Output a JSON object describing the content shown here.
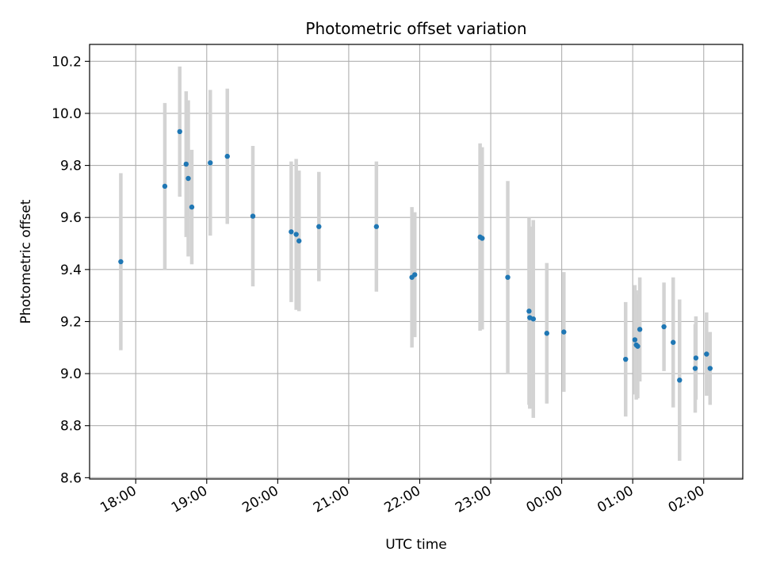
{
  "chart_data": {
    "type": "scatter",
    "title": "Photometric offset variation",
    "xlabel": "UTC time",
    "ylabel": "Photometric offset",
    "grid": true,
    "legend": "none",
    "x_unit": "hours (UTC, continuous across midnight; 24 = 00:00 next day)",
    "xlim": [
      17.35,
      26.55
    ],
    "ylim": [
      8.595,
      10.265
    ],
    "x_ticks": [
      18,
      19,
      20,
      21,
      22,
      23,
      24,
      25,
      26
    ],
    "x_tick_labels": [
      "18:00",
      "19:00",
      "20:00",
      "21:00",
      "22:00",
      "23:00",
      "00:00",
      "01:00",
      "02:00"
    ],
    "y_ticks": [
      8.6,
      8.8,
      9.0,
      9.2,
      9.4,
      9.6,
      9.8,
      10.0,
      10.2
    ],
    "y_tick_labels": [
      "8.6",
      "8.8",
      "9.0",
      "9.2",
      "9.4",
      "9.6",
      "9.8",
      "10.0",
      "10.2"
    ],
    "colors": {
      "point": "#1f77b4",
      "errorbar": "#d3d3d3",
      "grid": "#b0b0b0"
    },
    "series": [
      {
        "points": [
          {
            "x": 17.79,
            "y": 9.43,
            "err": 0.34
          },
          {
            "x": 18.41,
            "y": 9.72,
            "err": 0.32
          },
          {
            "x": 18.62,
            "y": 9.93,
            "err": 0.25
          },
          {
            "x": 18.71,
            "y": 9.805,
            "err": 0.28
          },
          {
            "x": 18.74,
            "y": 9.75,
            "err": 0.3
          },
          {
            "x": 18.79,
            "y": 9.64,
            "err": 0.22
          },
          {
            "x": 19.05,
            "y": 9.81,
            "err": 0.28
          },
          {
            "x": 19.29,
            "y": 9.835,
            "err": 0.26
          },
          {
            "x": 19.65,
            "y": 9.605,
            "err": 0.27
          },
          {
            "x": 20.19,
            "y": 9.545,
            "err": 0.27
          },
          {
            "x": 20.26,
            "y": 9.535,
            "err": 0.29
          },
          {
            "x": 20.3,
            "y": 9.51,
            "err": 0.27
          },
          {
            "x": 20.58,
            "y": 9.565,
            "err": 0.21
          },
          {
            "x": 21.39,
            "y": 9.565,
            "err": 0.25
          },
          {
            "x": 21.89,
            "y": 9.37,
            "err": 0.27
          },
          {
            "x": 21.93,
            "y": 9.38,
            "err": 0.24
          },
          {
            "x": 22.85,
            "y": 9.525,
            "err": 0.36
          },
          {
            "x": 22.88,
            "y": 9.52,
            "err": 0.35
          },
          {
            "x": 23.24,
            "y": 9.37,
            "err": 0.37
          },
          {
            "x": 23.54,
            "y": 9.24,
            "err": 0.36
          },
          {
            "x": 23.55,
            "y": 9.215,
            "err": 0.35
          },
          {
            "x": 23.6,
            "y": 9.21,
            "err": 0.38
          },
          {
            "x": 23.79,
            "y": 9.155,
            "err": 0.27
          },
          {
            "x": 24.03,
            "y": 9.16,
            "err": 0.23
          },
          {
            "x": 24.9,
            "y": 9.055,
            "err": 0.22
          },
          {
            "x": 25.03,
            "y": 9.13,
            "err": 0.21
          },
          {
            "x": 25.05,
            "y": 9.11,
            "err": 0.21
          },
          {
            "x": 25.07,
            "y": 9.105,
            "err": 0.2
          },
          {
            "x": 25.1,
            "y": 9.17,
            "err": 0.2
          },
          {
            "x": 25.44,
            "y": 9.18,
            "err": 0.17
          },
          {
            "x": 25.57,
            "y": 9.12,
            "err": 0.25
          },
          {
            "x": 25.66,
            "y": 8.975,
            "err": 0.31
          },
          {
            "x": 25.88,
            "y": 9.02,
            "err": 0.17
          },
          {
            "x": 25.89,
            "y": 9.06,
            "err": 0.16
          },
          {
            "x": 26.04,
            "y": 9.075,
            "err": 0.16
          },
          {
            "x": 26.09,
            "y": 9.02,
            "err": 0.14
          }
        ]
      }
    ]
  }
}
